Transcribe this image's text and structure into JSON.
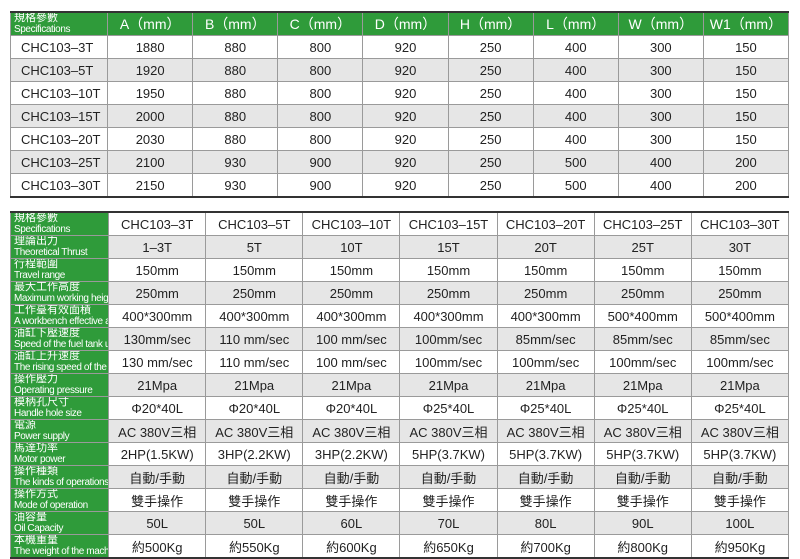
{
  "colors": {
    "header_green": "#2f9b3a",
    "alt_row": "#e6e6e6"
  },
  "table1": {
    "spec_label_zh": "規格參數",
    "spec_label_en": "Specifications",
    "headers": [
      "A（mm）",
      "B（mm）",
      "C（mm）",
      "D（mm）",
      "H（mm）",
      "L（mm）",
      "W（mm）",
      "W1（mm）"
    ],
    "rows": [
      {
        "model": "CHC103–3T",
        "values": [
          "1880",
          "880",
          "800",
          "920",
          "250",
          "400",
          "300",
          "150"
        ]
      },
      {
        "model": "CHC103–5T",
        "values": [
          "1920",
          "880",
          "800",
          "920",
          "250",
          "400",
          "300",
          "150"
        ]
      },
      {
        "model": "CHC103–10T",
        "values": [
          "1950",
          "880",
          "800",
          "920",
          "250",
          "400",
          "300",
          "150"
        ]
      },
      {
        "model": "CHC103–15T",
        "values": [
          "2000",
          "880",
          "800",
          "920",
          "250",
          "400",
          "300",
          "150"
        ]
      },
      {
        "model": "CHC103–20T",
        "values": [
          "2030",
          "880",
          "800",
          "920",
          "250",
          "400",
          "300",
          "150"
        ]
      },
      {
        "model": "CHC103–25T",
        "values": [
          "2100",
          "930",
          "900",
          "920",
          "250",
          "500",
          "400",
          "200"
        ]
      },
      {
        "model": "CHC103–30T",
        "values": [
          "2150",
          "930",
          "900",
          "920",
          "250",
          "500",
          "400",
          "200"
        ]
      }
    ]
  },
  "table2": {
    "rows": [
      {
        "zh": "規格參數",
        "en": "Specifications",
        "values": [
          "CHC103–3T",
          "CHC103–5T",
          "CHC103–10T",
          "CHC103–15T",
          "CHC103–20T",
          "CHC103–25T",
          "CHC103–30T"
        ]
      },
      {
        "zh": "理論出力",
        "en": "Theoretical Thrust",
        "values": [
          "1–3T",
          "5T",
          "10T",
          "15T",
          "20T",
          "25T",
          "30T"
        ]
      },
      {
        "zh": "行程範圍",
        "en": "Travel range",
        "values": [
          "150mm",
          "150mm",
          "150mm",
          "150mm",
          "150mm",
          "150mm",
          "150mm"
        ]
      },
      {
        "zh": "最大工作高度",
        "en": "Maximum working height",
        "values": [
          "250mm",
          "250mm",
          "250mm",
          "250mm",
          "250mm",
          "250mm",
          "250mm"
        ]
      },
      {
        "zh": "工作臺有效面積",
        "en": "A workbench effective area",
        "values": [
          "400*300mm",
          "400*300mm",
          "400*300mm",
          "400*300mm",
          "400*300mm",
          "500*400mm",
          "500*400mm"
        ]
      },
      {
        "zh": "油缸下壓速度",
        "en": "Speed of the fuel tank under pressure",
        "values": [
          "130mm/sec",
          "110 mm/sec",
          "100 mm/sec",
          "100mm/sec",
          "85mm/sec",
          "85mm/sec",
          "85mm/sec"
        ]
      },
      {
        "zh": "油缸上升速度",
        "en": "The rising speed of the cylinder",
        "values": [
          "130 mm/sec",
          "110 mm/sec",
          "100 mm/sec",
          "100mm/sec",
          "100mm/sec",
          "100mm/sec",
          "100mm/sec"
        ]
      },
      {
        "zh": "操作壓力",
        "en": "Operating pressure",
        "values": [
          "21Mpa",
          "21Mpa",
          "21Mpa",
          "21Mpa",
          "21Mpa",
          "21Mpa",
          "21Mpa"
        ]
      },
      {
        "zh": "模柄孔尺寸",
        "en": "Handle hole size",
        "values": [
          "Φ20*40L",
          "Φ20*40L",
          "Φ20*40L",
          "Φ25*40L",
          "Φ25*40L",
          "Φ25*40L",
          "Φ25*40L"
        ]
      },
      {
        "zh": "電源",
        "en": "Power supply",
        "values": [
          "AC 380V三相",
          "AC 380V三相",
          "AC 380V三相",
          "AC 380V三相",
          "AC 380V三相",
          "AC 380V三相",
          "AC 380V三相"
        ]
      },
      {
        "zh": "馬達功率",
        "en": "Motor power",
        "values": [
          "2HP(1.5KW)",
          "3HP(2.2KW)",
          "3HP(2.2KW)",
          "5HP(3.7KW)",
          "5HP(3.7KW)",
          "5HP(3.7KW)",
          "5HP(3.7KW)"
        ]
      },
      {
        "zh": "操作種類",
        "en": "The kinds of operations",
        "values": [
          "自動/手動",
          "自動/手動",
          "自動/手動",
          "自動/手動",
          "自動/手動",
          "自動/手動",
          "自動/手動"
        ]
      },
      {
        "zh": "操作方式",
        "en": "Mode of operation",
        "values": [
          "雙手操作",
          "雙手操作",
          "雙手操作",
          "雙手操作",
          "雙手操作",
          "雙手操作",
          "雙手操作"
        ]
      },
      {
        "zh": "油容量",
        "en": "Oil Capacity",
        "values": [
          "50L",
          "50L",
          "60L",
          "70L",
          "80L",
          "90L",
          "100L"
        ]
      },
      {
        "zh": "本機重量",
        "en": "The weight of the machine",
        "values": [
          "約500Kg",
          "約550Kg",
          "約600Kg",
          "約650Kg",
          "約700Kg",
          "約800Kg",
          "約950Kg"
        ]
      }
    ]
  }
}
